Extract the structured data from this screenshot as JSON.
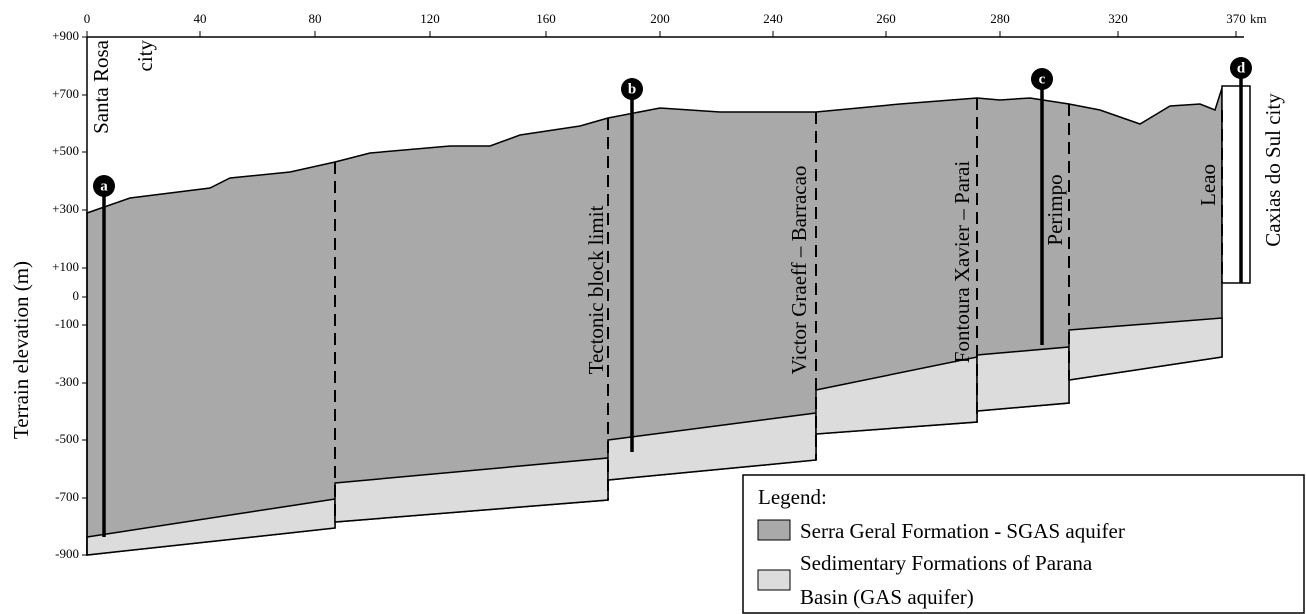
{
  "axis": {
    "x_ticks": [
      "0",
      "40",
      "80",
      "120",
      "160",
      "200",
      "240",
      "260",
      "280",
      "320",
      "370"
    ],
    "x_unit": "km",
    "y_ticks": [
      "+900",
      "+700",
      "+500",
      "+300",
      "+100",
      "0",
      "-100",
      "-300",
      "-500",
      "-700",
      "-900"
    ],
    "y_label": "Terrain elevation (m)"
  },
  "places": {
    "start": [
      "Santa Rosa",
      "city"
    ],
    "end": "Caxias do Sul city"
  },
  "faults": [
    "Tectonic block limit",
    "Victor Graeff – Barracao",
    "Fontoura Xavier – Parai",
    "Perimpo",
    "Leao"
  ],
  "wells": [
    "a",
    "b",
    "c",
    "d"
  ],
  "legend": {
    "title": "Legend:",
    "items": [
      [
        "Serra Geral Formation - SGAS aquifer"
      ],
      [
        "Sedimentary Formations of Parana",
        "Basin (GAS aquifer)"
      ]
    ]
  }
}
